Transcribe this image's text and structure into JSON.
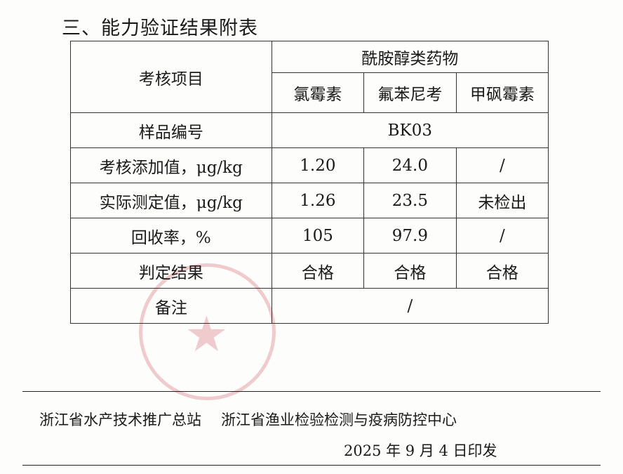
{
  "section_title": "三、能力验证结果附表",
  "table": {
    "header_item": "考核项目",
    "group": "酰胺醇类药物",
    "drugs": [
      "氯霉素",
      "氟苯尼考",
      "甲砜霉素"
    ],
    "sample_label": "样品编号",
    "sample_id": "BK03",
    "rows": [
      {
        "label": "考核添加值，μg/kg",
        "values": [
          "1.20",
          "24.0",
          "/"
        ]
      },
      {
        "label": "实际测定值，μg/kg",
        "values": [
          "1.26",
          "23.5",
          "未检出"
        ]
      },
      {
        "label": "回收率，%",
        "values": [
          "105",
          "97.9",
          "/"
        ]
      },
      {
        "label": "判定结果",
        "values": [
          "合格",
          "合格",
          "合格"
        ]
      }
    ],
    "remark_label": "备注",
    "remark_value": "/"
  },
  "footer": {
    "issuer1": "浙江省水产技术推广总站",
    "issuer2": "浙江省渔业检验检测与疫病防控中心",
    "date": "2025 年 9 月 4 日印发"
  },
  "stamp_color": "#d76e78"
}
